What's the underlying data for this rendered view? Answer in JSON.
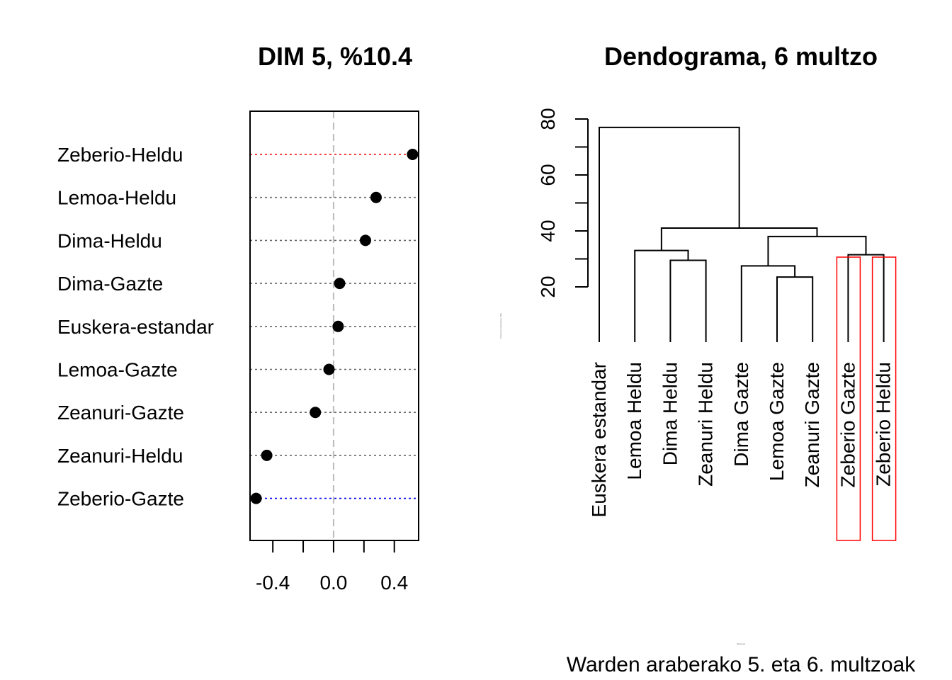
{
  "chart_data": [
    {
      "type": "dotchart",
      "title": "DIM 5, %10.4",
      "categories": [
        "Zeberio-Heldu",
        "Lemoa-Heldu",
        "Dima-Heldu",
        "Dima-Gazte",
        "Euskera-estandar",
        "Lemoa-Gazte",
        "Zeanuri-Gazte",
        "Zeanuri-Heldu",
        "Zeberio-Gazte"
      ],
      "values": [
        0.52,
        0.28,
        0.21,
        0.04,
        0.03,
        -0.03,
        -0.12,
        -0.44,
        -0.51
      ],
      "line_colors": [
        "#ff0000",
        "#666666",
        "#666666",
        "#666666",
        "#666666",
        "#666666",
        "#666666",
        "#666666",
        "#0000ee"
      ],
      "xlim": [
        -0.55,
        0.56
      ],
      "x_ticks": [
        -0.4,
        -0.2,
        0.0,
        0.2,
        0.4
      ],
      "x_tick_labels": [
        "-0.4",
        "0.0",
        "0.4"
      ],
      "reference_line": 0.0
    },
    {
      "type": "dendrogram",
      "title": "Dendograma, 6 multzo",
      "leaves": [
        "Euskera estandar",
        "Lemoa Heldu",
        "Dima Heldu",
        "Zeanuri Heldu",
        "Dima Gazte",
        "Lemoa Gazte",
        "Zeanuri Gazte",
        "Zeberio Gazte",
        "Zeberio Heldu"
      ],
      "merges": [
        {
          "left": "Lemoa Gazte",
          "right": "Zeanuri Gazte",
          "height": 23.5
        },
        {
          "left": "Dima Gazte",
          "right": "Lemoa Gazte+Zeanuri Gazte",
          "height": 27.5
        },
        {
          "left": "Dima Heldu",
          "right": "Zeanuri Heldu",
          "height": 29.5
        },
        {
          "left": "Zeberio Gazte",
          "right": "Zeberio Heldu",
          "height": 31.5
        },
        {
          "left": "Lemoa Heldu",
          "right": "Dima Heldu+Zeanuri Heldu",
          "height": 33
        },
        {
          "left": "Dima Gazte+Lemoa Gazte+Zeanuri Gazte",
          "right": "Zeberio Gazte+Zeberio Heldu",
          "height": 38
        },
        {
          "left": "Lemoa Heldu+Dima Heldu+Zeanuri Heldu",
          "right": "Dima Gazte+Lemoa Gazte+Zeanuri Gazte+Zeberio Gazte+Zeberio Heldu",
          "height": 41
        },
        {
          "left": "Euskera estandar",
          "right": "all others",
          "height": 77
        }
      ],
      "ylim": [
        10,
        80
      ],
      "y_ticks": [
        20,
        30,
        40,
        50,
        60,
        70,
        80
      ],
      "y_tick_labels": [
        "20",
        "40",
        "60",
        "80"
      ],
      "highlighted_leaves": [
        "Zeberio Gazte",
        "Zeberio Heldu"
      ],
      "highlight_color": "#ff0000",
      "caption": "Warden araberako 5. eta 6. multzoak",
      "tiny_ylabel": "Distantzia linguistikoa (IRI)",
      "tiny_xlabel": "Multzoak"
    }
  ]
}
